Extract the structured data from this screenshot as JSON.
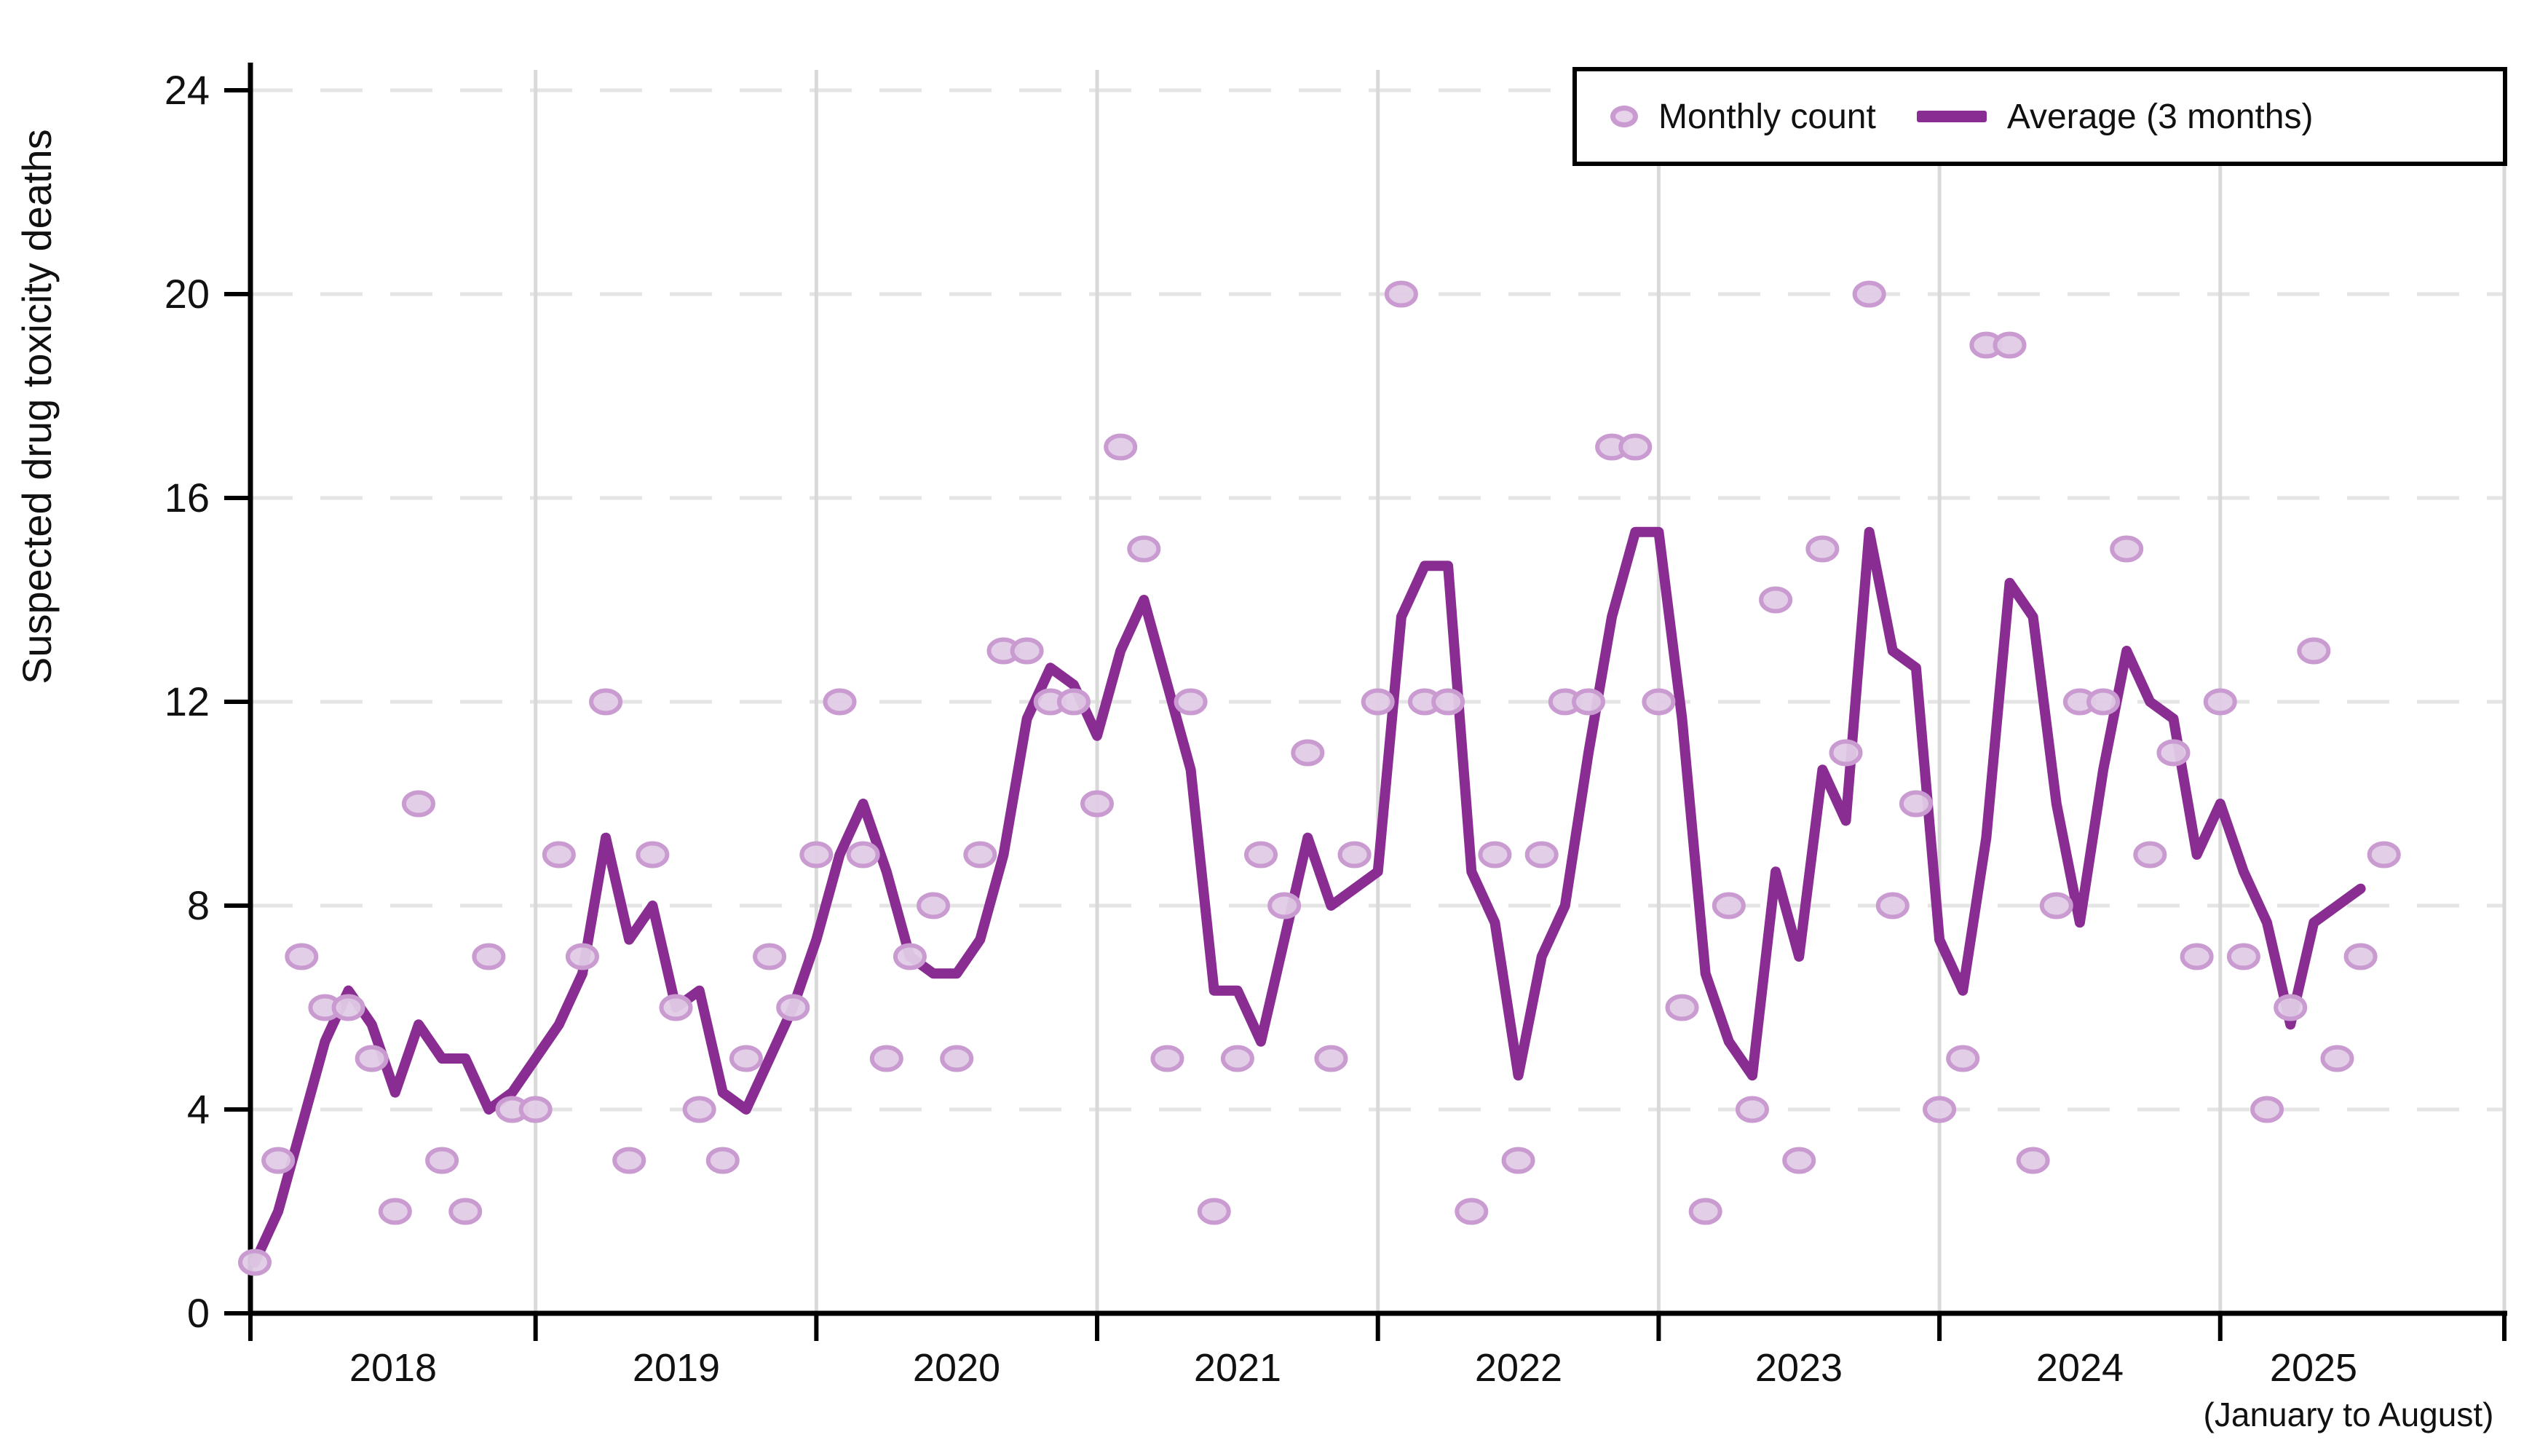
{
  "chart_data": {
    "type": "scatter",
    "title": "",
    "ylabel": "Suspected drug toxicity deaths",
    "xlabel": "",
    "x_note": "(January to August)",
    "start_month": "2018-01",
    "end_month": "2025-08",
    "y_ticks": [
      0,
      4,
      8,
      12,
      16,
      20,
      24
    ],
    "ylim": [
      0,
      24.6
    ],
    "grid": "horizontal dashed at multiples of 4; vertical solid at each January",
    "legend_position": "top-right",
    "legend": [
      {
        "label": "Monthly count",
        "marker": "circle"
      },
      {
        "label": "Average (3 months)",
        "marker": "line"
      }
    ],
    "year_labels": [
      {
        "label": "2018"
      },
      {
        "label": "2019"
      },
      {
        "label": "2020"
      },
      {
        "label": "2021"
      },
      {
        "label": "2022"
      },
      {
        "label": "2023"
      },
      {
        "label": "2024"
      },
      {
        "label": "2025"
      }
    ],
    "series": [
      {
        "name": "Monthly count",
        "style": "scatter",
        "values": [
          1,
          3,
          7,
          6,
          6,
          5,
          2,
          10,
          3,
          2,
          7,
          4,
          4,
          9,
          7,
          12,
          3,
          9,
          6,
          4,
          3,
          5,
          7,
          6,
          9,
          12,
          9,
          5,
          7,
          8,
          5,
          9,
          13,
          13,
          12,
          12,
          10,
          17,
          15,
          5,
          12,
          2,
          5,
          9,
          8,
          11,
          5,
          9,
          12,
          20,
          12,
          12,
          2,
          9,
          3,
          9,
          12,
          12,
          17,
          17,
          12,
          6,
          2,
          8,
          4,
          14,
          3,
          15,
          11,
          20,
          8,
          10,
          4,
          5,
          19,
          19,
          3,
          8,
          12,
          12,
          15,
          9,
          11,
          7,
          12,
          7,
          4,
          6,
          13,
          5,
          7,
          9
        ]
      },
      {
        "name": "Average (3 months)",
        "style": "line",
        "derivation": "trailing 3-month mean of Monthly count (partial windows at series start); line ends one month before the last point"
      }
    ],
    "colors": {
      "dot_fill": "#e2cbe6",
      "dot_stroke": "#c99bd1",
      "line": "#8a2d93",
      "axis": "#000000",
      "grid_dashed": "#e4e4e4",
      "grid_vertical": "#d9d9d9",
      "text": "#111111"
    }
  }
}
